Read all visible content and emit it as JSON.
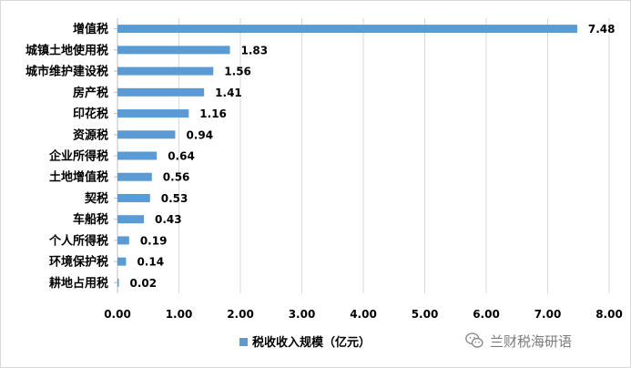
{
  "chart_data": {
    "type": "bar",
    "orientation": "horizontal",
    "categories": [
      "增值税",
      "城镇土地使用税",
      "城市维护建设税",
      "房产税",
      "印花税",
      "资源税",
      "企业所得税",
      "土地增值税",
      "契税",
      "车船税",
      "个人所得税",
      "环境保护税",
      "耕地占用税"
    ],
    "values": [
      7.48,
      1.83,
      1.56,
      1.41,
      1.16,
      0.94,
      0.64,
      0.56,
      0.53,
      0.43,
      0.19,
      0.14,
      0.02
    ],
    "value_labels": [
      "7.48",
      "1.83",
      "1.56",
      "1.41",
      "1.16",
      "0.94",
      "0.64",
      "0.56",
      "0.53",
      "0.43",
      "0.19",
      "0.14",
      "0.02"
    ],
    "xlim": [
      0,
      8
    ],
    "xticks": [
      0,
      1,
      2,
      3,
      4,
      5,
      6,
      7,
      8
    ],
    "xtick_labels": [
      "0.00",
      "1.00",
      "2.00",
      "3.00",
      "4.00",
      "5.00",
      "6.00",
      "7.00",
      "8.00"
    ],
    "title": "",
    "xlabel": "",
    "ylabel": "",
    "grid": "vertical",
    "legend": {
      "position": "bottom",
      "entries": [
        {
          "name": "税收收入规模（亿元）",
          "color": "#5b9bd5"
        }
      ]
    },
    "colors": {
      "bar": "#5b9bd5",
      "grid": "#d9d9d9",
      "axis": "#bfbfbf"
    }
  },
  "watermark": {
    "text": "兰财税海研语",
    "icon": "wechat-icon"
  }
}
